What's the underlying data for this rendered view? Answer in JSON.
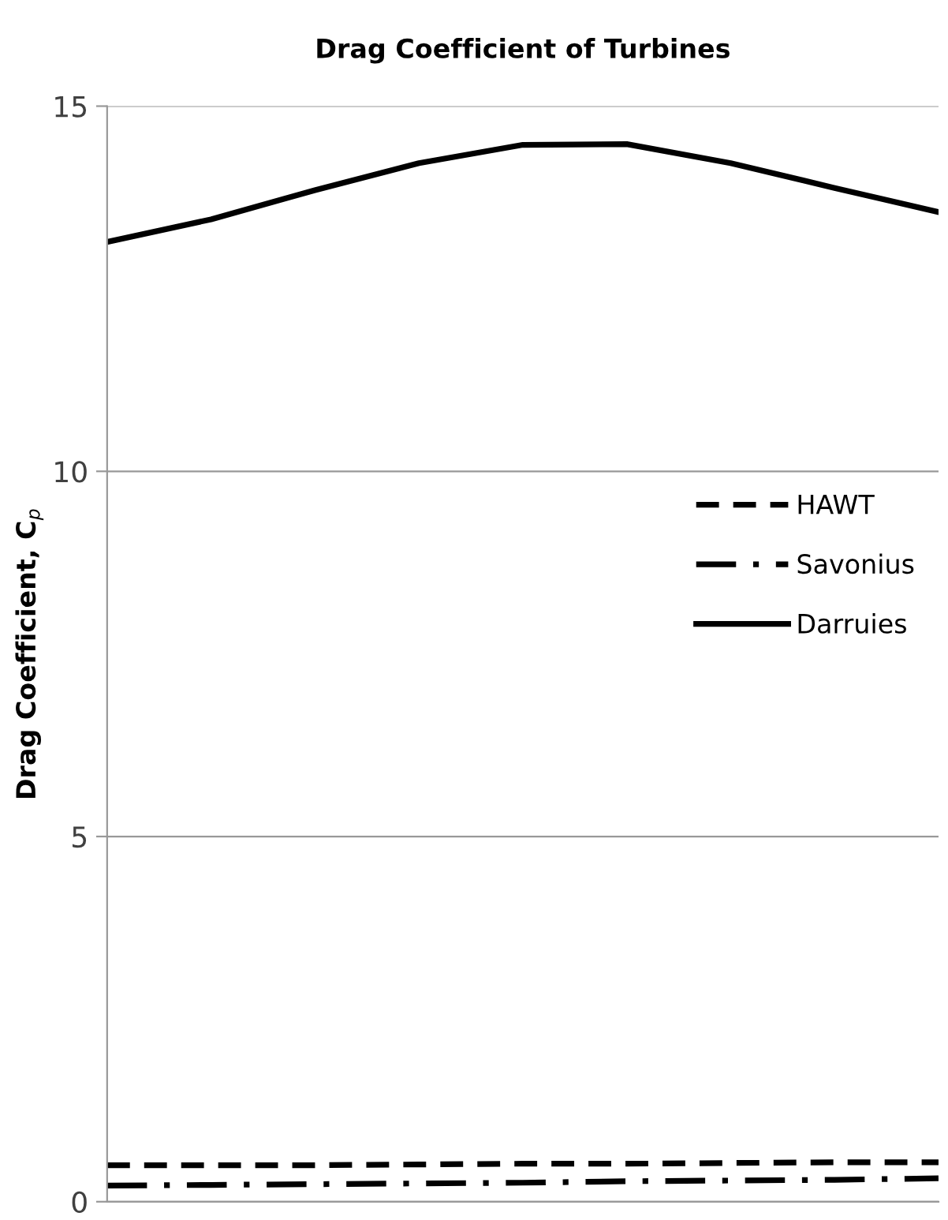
{
  "chart_data": {
    "type": "line",
    "title": "Drag Coefficient of Turbines",
    "ylabel": "Drag Coefficient, C$_{p}$",
    "categories": [
      null,
      null,
      null,
      null,
      null,
      null,
      null,
      null,
      null
    ],
    "series": [
      {
        "name": "HAWT",
        "color": "#000000",
        "line_style": "dashed",
        "values": [
          0.5,
          0.5,
          0.5,
          0.51,
          0.52,
          0.52,
          0.53,
          0.54,
          0.54
        ]
      },
      {
        "name": "Savonius",
        "color": "#000000",
        "line_style": "dashdot",
        "values": [
          0.22,
          0.23,
          0.24,
          0.25,
          0.26,
          0.28,
          0.29,
          0.3,
          0.32
        ]
      },
      {
        "name": "Darruies",
        "color": "#000000",
        "line_style": "solid",
        "values": [
          13.14,
          13.45,
          13.85,
          14.22,
          14.47,
          14.48,
          14.22,
          13.88,
          13.55
        ]
      }
    ],
    "ylim": [
      0,
      15
    ],
    "yticks": [
      0,
      5,
      10,
      15
    ],
    "grid": "y",
    "legend": "right",
    "marker": "none",
    "tick_labels": "y"
  }
}
